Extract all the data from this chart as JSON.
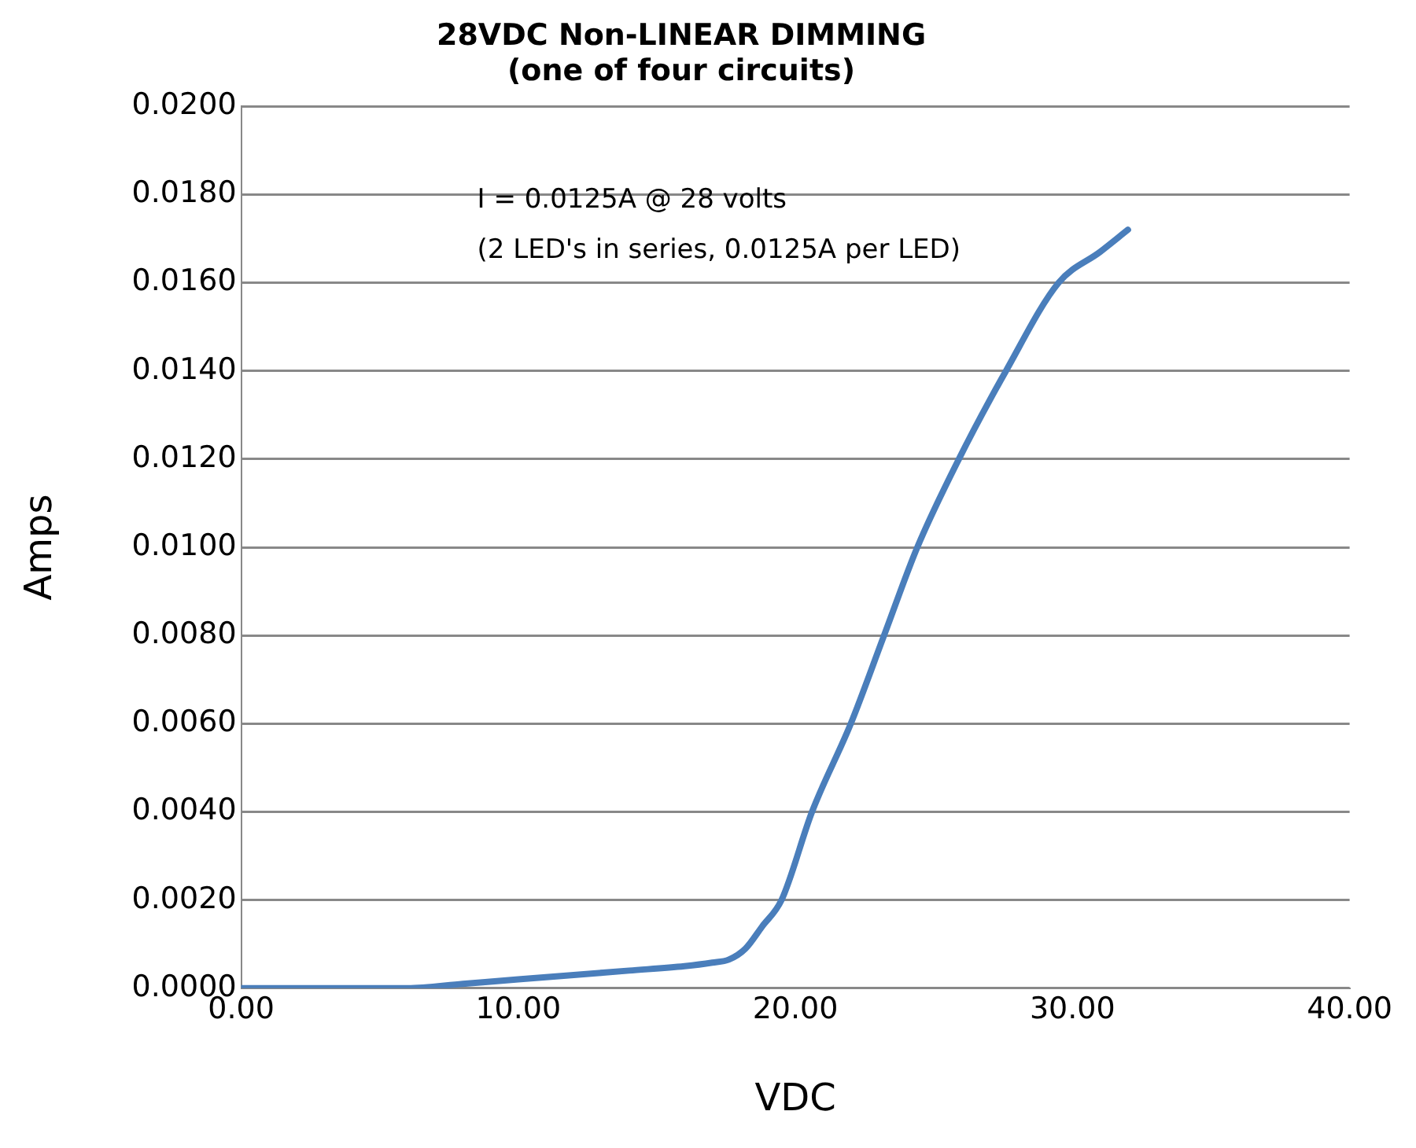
{
  "chart_data": {
    "type": "line",
    "title": [
      "28VDC Non-LINEAR DIMMING",
      "(one of four circuits)"
    ],
    "xlabel": "VDC",
    "ylabel": "Amps",
    "x": [
      0,
      6,
      8,
      10,
      12,
      14,
      16,
      17,
      17.6,
      18.2,
      18.8,
      19.5,
      20.6,
      22,
      23.2,
      24.4,
      25.9,
      27.6,
      29.5,
      31,
      32
    ],
    "series": [
      {
        "color": "#4a7ebb",
        "values": [
          0,
          0,
          0.0001,
          0.0002,
          0.0003,
          0.0004,
          0.0005,
          0.00058,
          0.00065,
          0.0009,
          0.0014,
          0.002,
          0.004,
          0.006,
          0.008,
          0.01,
          0.012,
          0.014,
          0.016,
          0.0167,
          0.0172
        ]
      }
    ],
    "xlim": [
      0,
      40
    ],
    "xticks": [
      {
        "value": 0,
        "label": "0.00"
      },
      {
        "value": 10,
        "label": "10.00"
      },
      {
        "value": 20,
        "label": "20.00"
      },
      {
        "value": 30,
        "label": "30.00"
      },
      {
        "value": 40,
        "label": "40.00"
      }
    ],
    "ylim": [
      0,
      0.02
    ],
    "yticks": [
      {
        "value": 0,
        "label": "0.0000"
      },
      {
        "value": 0.002,
        "label": "0.0020"
      },
      {
        "value": 0.004,
        "label": "0.0040"
      },
      {
        "value": 0.006,
        "label": "0.0060"
      },
      {
        "value": 0.008,
        "label": "0.0080"
      },
      {
        "value": 0.01,
        "label": "0.0100"
      },
      {
        "value": 0.012,
        "label": "0.0120"
      },
      {
        "value": 0.014,
        "label": "0.0140"
      },
      {
        "value": 0.016,
        "label": "0.0160"
      },
      {
        "value": 0.018,
        "label": "0.0180"
      },
      {
        "value": 0.02,
        "label": "0.0200"
      }
    ],
    "grid": "y",
    "legend": false,
    "marker": "none",
    "line_style": "solid",
    "annotations": [
      "I = 0.0125A @ 28 volts",
      "(2 LED's in series, 0.0125A per LED)"
    ]
  }
}
